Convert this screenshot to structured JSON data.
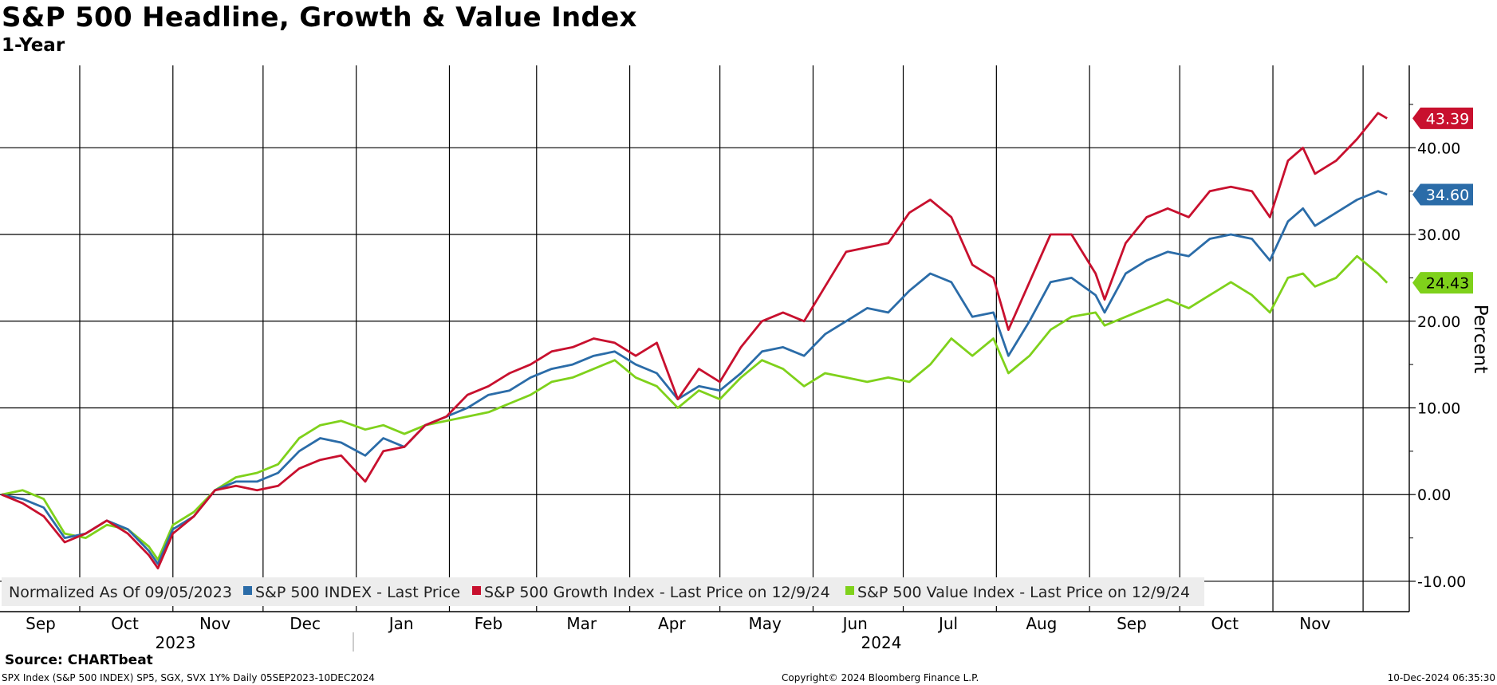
{
  "title": "S&P 500 Headline, Growth & Value Index",
  "subtitle": "1-Year",
  "source": "Source: CHARTbeat",
  "footer": {
    "left": "SPX Index (S&P 500 INDEX) SP5, SGX, SVX 1Y% Daily 05SEP2023-10DEC2024",
    "center": "Copyright© 2024 Bloomberg Finance L.P.",
    "right": "10-Dec-2024 06:35:30"
  },
  "colors": {
    "sp500": "#2b6ca8",
    "growth": "#c8102e",
    "value": "#7fd11b",
    "grid": "#000000",
    "legend_bg": "#ededed"
  },
  "legend": {
    "intro": "Normalized As Of 09/05/2023",
    "items": [
      {
        "key": "sp500",
        "label": "S&P 500 INDEX - Last Price"
      },
      {
        "key": "growth",
        "label": "S&P 500 Growth Index - Last Price on 12/9/24"
      },
      {
        "key": "value",
        "label": "S&P 500 Value Index - Last Price on 12/9/24"
      }
    ]
  },
  "chart_data": {
    "type": "line",
    "title": "S&P 500 Headline, Growth & Value Index",
    "subtitle": "1-Year",
    "ylabel": "Percent",
    "ylim": [
      -13.5,
      49.5
    ],
    "y_ticks": [
      -10,
      0,
      10,
      20,
      30,
      40
    ],
    "y_tick_labels": [
      "-10.00",
      "0.00",
      "10.00",
      "20.00",
      "30.00",
      "40.00"
    ],
    "x_months": [
      "Sep",
      "Oct",
      "Nov",
      "Dec",
      "Jan",
      "Feb",
      "Mar",
      "Apr",
      "May",
      "Jun",
      "Jul",
      "Aug",
      "Sep",
      "Oct",
      "Nov"
    ],
    "x_years": [
      "2023",
      "2024"
    ],
    "x_range": [
      "2023-09-05",
      "2024-12-10"
    ],
    "legend_position": "bottom",
    "grid": true,
    "series": [
      {
        "key": "sp500",
        "name": "S&P 500 INDEX - Last Price",
        "last_value": "34.60",
        "points": [
          [
            "2023-09-05",
            0.0
          ],
          [
            "2023-09-12",
            -0.5
          ],
          [
            "2023-09-19",
            -1.5
          ],
          [
            "2023-09-26",
            -5.0
          ],
          [
            "2023-10-03",
            -4.5
          ],
          [
            "2023-10-10",
            -3.0
          ],
          [
            "2023-10-17",
            -4.0
          ],
          [
            "2023-10-24",
            -6.5
          ],
          [
            "2023-10-27",
            -8.0
          ],
          [
            "2023-11-01",
            -4.0
          ],
          [
            "2023-11-08",
            -2.5
          ],
          [
            "2023-11-15",
            0.5
          ],
          [
            "2023-11-22",
            1.5
          ],
          [
            "2023-11-29",
            1.5
          ],
          [
            "2023-12-06",
            2.5
          ],
          [
            "2023-12-13",
            5.0
          ],
          [
            "2023-12-20",
            6.5
          ],
          [
            "2023-12-27",
            6.0
          ],
          [
            "2024-01-04",
            4.5
          ],
          [
            "2024-01-10",
            6.5
          ],
          [
            "2024-01-17",
            5.5
          ],
          [
            "2024-01-24",
            8.0
          ],
          [
            "2024-01-31",
            9.0
          ],
          [
            "2024-02-07",
            10.0
          ],
          [
            "2024-02-14",
            11.5
          ],
          [
            "2024-02-21",
            12.0
          ],
          [
            "2024-02-28",
            13.5
          ],
          [
            "2024-03-06",
            14.5
          ],
          [
            "2024-03-13",
            15.0
          ],
          [
            "2024-03-20",
            16.0
          ],
          [
            "2024-03-27",
            16.5
          ],
          [
            "2024-04-03",
            15.0
          ],
          [
            "2024-04-10",
            14.0
          ],
          [
            "2024-04-17",
            11.0
          ],
          [
            "2024-04-24",
            12.5
          ],
          [
            "2024-05-01",
            12.0
          ],
          [
            "2024-05-08",
            14.0
          ],
          [
            "2024-05-15",
            16.5
          ],
          [
            "2024-05-22",
            17.0
          ],
          [
            "2024-05-29",
            16.0
          ],
          [
            "2024-06-05",
            18.5
          ],
          [
            "2024-06-12",
            20.0
          ],
          [
            "2024-06-19",
            21.5
          ],
          [
            "2024-06-26",
            21.0
          ],
          [
            "2024-07-03",
            23.5
          ],
          [
            "2024-07-10",
            25.5
          ],
          [
            "2024-07-17",
            24.5
          ],
          [
            "2024-07-24",
            20.5
          ],
          [
            "2024-07-31",
            21.0
          ],
          [
            "2024-08-05",
            16.0
          ],
          [
            "2024-08-12",
            20.0
          ],
          [
            "2024-08-19",
            24.5
          ],
          [
            "2024-08-26",
            25.0
          ],
          [
            "2024-09-03",
            23.0
          ],
          [
            "2024-09-06",
            21.0
          ],
          [
            "2024-09-13",
            25.5
          ],
          [
            "2024-09-20",
            27.0
          ],
          [
            "2024-09-27",
            28.0
          ],
          [
            "2024-10-04",
            27.5
          ],
          [
            "2024-10-11",
            29.5
          ],
          [
            "2024-10-18",
            30.0
          ],
          [
            "2024-10-25",
            29.5
          ],
          [
            "2024-10-31",
            27.0
          ],
          [
            "2024-11-06",
            31.5
          ],
          [
            "2024-11-11",
            33.0
          ],
          [
            "2024-11-15",
            31.0
          ],
          [
            "2024-11-22",
            32.5
          ],
          [
            "2024-11-29",
            34.0
          ],
          [
            "2024-12-06",
            35.0
          ],
          [
            "2024-12-09",
            34.6
          ]
        ]
      },
      {
        "key": "growth",
        "name": "S&P 500 Growth Index - Last Price on 12/9/24",
        "last_value": "43.39",
        "points": [
          [
            "2023-09-05",
            0.0
          ],
          [
            "2023-09-12",
            -1.0
          ],
          [
            "2023-09-19",
            -2.5
          ],
          [
            "2023-09-26",
            -5.5
          ],
          [
            "2023-10-03",
            -4.5
          ],
          [
            "2023-10-10",
            -3.0
          ],
          [
            "2023-10-17",
            -4.5
          ],
          [
            "2023-10-24",
            -7.0
          ],
          [
            "2023-10-27",
            -8.5
          ],
          [
            "2023-11-01",
            -4.5
          ],
          [
            "2023-11-08",
            -2.5
          ],
          [
            "2023-11-15",
            0.5
          ],
          [
            "2023-11-22",
            1.0
          ],
          [
            "2023-11-29",
            0.5
          ],
          [
            "2023-12-06",
            1.0
          ],
          [
            "2023-12-13",
            3.0
          ],
          [
            "2023-12-20",
            4.0
          ],
          [
            "2023-12-27",
            4.5
          ],
          [
            "2024-01-04",
            1.5
          ],
          [
            "2024-01-10",
            5.0
          ],
          [
            "2024-01-17",
            5.5
          ],
          [
            "2024-01-24",
            8.0
          ],
          [
            "2024-01-31",
            9.0
          ],
          [
            "2024-02-07",
            11.5
          ],
          [
            "2024-02-14",
            12.5
          ],
          [
            "2024-02-21",
            14.0
          ],
          [
            "2024-02-28",
            15.0
          ],
          [
            "2024-03-06",
            16.5
          ],
          [
            "2024-03-13",
            17.0
          ],
          [
            "2024-03-20",
            18.0
          ],
          [
            "2024-03-27",
            17.5
          ],
          [
            "2024-04-03",
            16.0
          ],
          [
            "2024-04-10",
            17.5
          ],
          [
            "2024-04-17",
            11.0
          ],
          [
            "2024-04-24",
            14.5
          ],
          [
            "2024-05-01",
            13.0
          ],
          [
            "2024-05-08",
            17.0
          ],
          [
            "2024-05-15",
            20.0
          ],
          [
            "2024-05-22",
            21.0
          ],
          [
            "2024-05-29",
            20.0
          ],
          [
            "2024-06-05",
            24.0
          ],
          [
            "2024-06-12",
            28.0
          ],
          [
            "2024-06-19",
            28.5
          ],
          [
            "2024-06-26",
            29.0
          ],
          [
            "2024-07-03",
            32.5
          ],
          [
            "2024-07-10",
            34.0
          ],
          [
            "2024-07-17",
            32.0
          ],
          [
            "2024-07-24",
            26.5
          ],
          [
            "2024-07-31",
            25.0
          ],
          [
            "2024-08-05",
            19.0
          ],
          [
            "2024-08-12",
            24.5
          ],
          [
            "2024-08-19",
            30.0
          ],
          [
            "2024-08-26",
            30.0
          ],
          [
            "2024-09-03",
            25.5
          ],
          [
            "2024-09-06",
            22.5
          ],
          [
            "2024-09-13",
            29.0
          ],
          [
            "2024-09-20",
            32.0
          ],
          [
            "2024-09-27",
            33.0
          ],
          [
            "2024-10-04",
            32.0
          ],
          [
            "2024-10-11",
            35.0
          ],
          [
            "2024-10-18",
            35.5
          ],
          [
            "2024-10-25",
            35.0
          ],
          [
            "2024-10-31",
            32.0
          ],
          [
            "2024-11-06",
            38.5
          ],
          [
            "2024-11-11",
            40.0
          ],
          [
            "2024-11-15",
            37.0
          ],
          [
            "2024-11-22",
            38.5
          ],
          [
            "2024-11-29",
            41.0
          ],
          [
            "2024-12-06",
            44.0
          ],
          [
            "2024-12-09",
            43.39
          ]
        ]
      },
      {
        "key": "value",
        "name": "S&P 500 Value Index - Last Price on 12/9/24",
        "last_value": "24.43",
        "points": [
          [
            "2023-09-05",
            0.0
          ],
          [
            "2023-09-12",
            0.5
          ],
          [
            "2023-09-19",
            -0.5
          ],
          [
            "2023-09-26",
            -4.5
          ],
          [
            "2023-10-03",
            -5.0
          ],
          [
            "2023-10-10",
            -3.5
          ],
          [
            "2023-10-17",
            -4.0
          ],
          [
            "2023-10-24",
            -6.0
          ],
          [
            "2023-10-27",
            -7.5
          ],
          [
            "2023-11-01",
            -3.5
          ],
          [
            "2023-11-08",
            -2.0
          ],
          [
            "2023-11-15",
            0.5
          ],
          [
            "2023-11-22",
            2.0
          ],
          [
            "2023-11-29",
            2.5
          ],
          [
            "2023-12-06",
            3.5
          ],
          [
            "2023-12-13",
            6.5
          ],
          [
            "2023-12-20",
            8.0
          ],
          [
            "2023-12-27",
            8.5
          ],
          [
            "2024-01-04",
            7.5
          ],
          [
            "2024-01-10",
            8.0
          ],
          [
            "2024-01-17",
            7.0
          ],
          [
            "2024-01-24",
            8.0
          ],
          [
            "2024-01-31",
            8.5
          ],
          [
            "2024-02-07",
            9.0
          ],
          [
            "2024-02-14",
            9.5
          ],
          [
            "2024-02-21",
            10.5
          ],
          [
            "2024-02-28",
            11.5
          ],
          [
            "2024-03-06",
            13.0
          ],
          [
            "2024-03-13",
            13.5
          ],
          [
            "2024-03-20",
            14.5
          ],
          [
            "2024-03-27",
            15.5
          ],
          [
            "2024-04-03",
            13.5
          ],
          [
            "2024-04-10",
            12.5
          ],
          [
            "2024-04-17",
            10.0
          ],
          [
            "2024-04-24",
            12.0
          ],
          [
            "2024-05-01",
            11.0
          ],
          [
            "2024-05-08",
            13.5
          ],
          [
            "2024-05-15",
            15.5
          ],
          [
            "2024-05-22",
            14.5
          ],
          [
            "2024-05-29",
            12.5
          ],
          [
            "2024-06-05",
            14.0
          ],
          [
            "2024-06-12",
            13.5
          ],
          [
            "2024-06-19",
            13.0
          ],
          [
            "2024-06-26",
            13.5
          ],
          [
            "2024-07-03",
            13.0
          ],
          [
            "2024-07-10",
            15.0
          ],
          [
            "2024-07-17",
            18.0
          ],
          [
            "2024-07-24",
            16.0
          ],
          [
            "2024-07-31",
            18.0
          ],
          [
            "2024-08-05",
            14.0
          ],
          [
            "2024-08-12",
            16.0
          ],
          [
            "2024-08-19",
            19.0
          ],
          [
            "2024-08-26",
            20.5
          ],
          [
            "2024-09-03",
            21.0
          ],
          [
            "2024-09-06",
            19.5
          ],
          [
            "2024-09-13",
            20.5
          ],
          [
            "2024-09-20",
            21.5
          ],
          [
            "2024-09-27",
            22.5
          ],
          [
            "2024-10-04",
            21.5
          ],
          [
            "2024-10-11",
            23.0
          ],
          [
            "2024-10-18",
            24.5
          ],
          [
            "2024-10-25",
            23.0
          ],
          [
            "2024-10-31",
            21.0
          ],
          [
            "2024-11-06",
            25.0
          ],
          [
            "2024-11-11",
            25.5
          ],
          [
            "2024-11-15",
            24.0
          ],
          [
            "2024-11-22",
            25.0
          ],
          [
            "2024-11-29",
            27.5
          ],
          [
            "2024-12-06",
            25.5
          ],
          [
            "2024-12-09",
            24.43
          ]
        ]
      }
    ]
  }
}
